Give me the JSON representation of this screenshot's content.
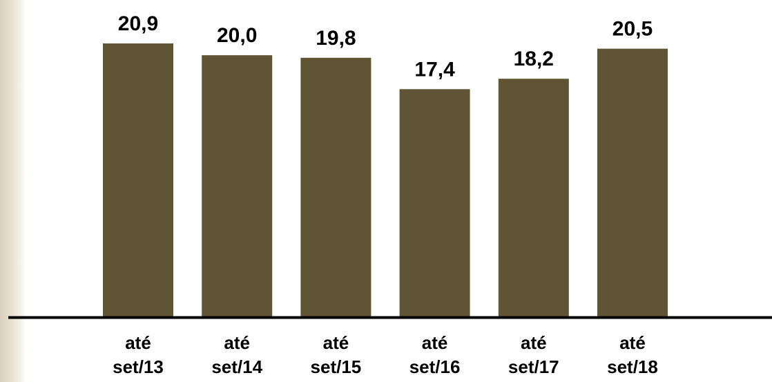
{
  "chart_data": {
    "type": "bar",
    "categories": [
      [
        "até",
        "set/13"
      ],
      [
        "até",
        "set/14"
      ],
      [
        "até",
        "set/15"
      ],
      [
        "até",
        "set/16"
      ],
      [
        "até",
        "set/17"
      ],
      [
        "até",
        "set/18"
      ]
    ],
    "values": [
      20.9,
      20.0,
      19.8,
      17.4,
      18.2,
      20.5
    ],
    "data_labels": [
      "20,9",
      "20,0",
      "19,8",
      "17,4",
      "18,2",
      "20,5"
    ],
    "title": "",
    "xlabel": "",
    "ylabel": "",
    "ylim": [
      0,
      20.9
    ],
    "grid": false,
    "legend": "none",
    "bar_color": "#5f5534",
    "axis_color": "#000000"
  }
}
